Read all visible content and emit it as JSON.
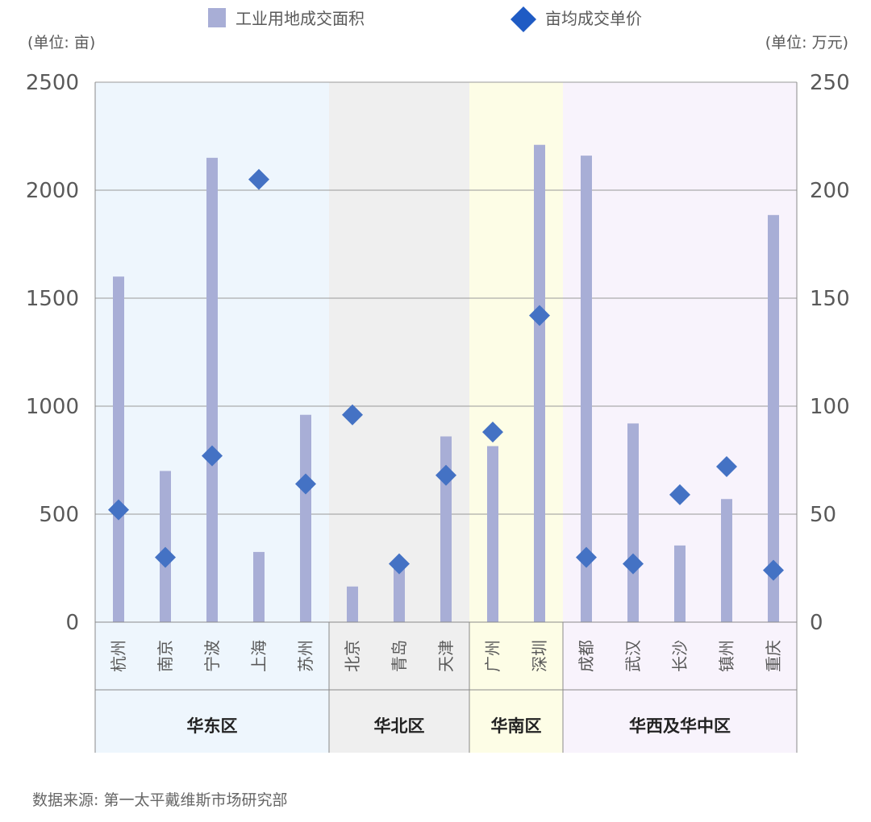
{
  "chart_data": {
    "type": "bar",
    "legend": {
      "bar_label": "工业用地成交面积",
      "marker_label": "亩均成交单价",
      "placement": "top"
    },
    "left_axis": {
      "unit": "(单位: 亩)",
      "ylim": [
        0,
        2500
      ],
      "ticks": [
        "0",
        "500",
        "1000",
        "1500",
        "2000",
        "2500"
      ]
    },
    "right_axis": {
      "unit": "(单位: 万元)",
      "ylim": [
        0,
        250
      ],
      "ticks": [
        "0",
        "50",
        "100",
        "150",
        "200",
        "250"
      ]
    },
    "categories": [
      "杭州",
      "南京",
      "宁波",
      "上海",
      "苏州",
      "北京",
      "青岛",
      "天津",
      "广州",
      "深圳",
      "成都",
      "武汉",
      "长沙",
      "镇州",
      "重庆"
    ],
    "series": [
      {
        "name": "工业用地成交面积",
        "axis": "left",
        "kind": "bar",
        "values": [
          1600,
          700,
          2150,
          325,
          960,
          165,
          290,
          860,
          815,
          2210,
          2160,
          920,
          355,
          570,
          1885
        ]
      },
      {
        "name": "亩均成交单价",
        "axis": "right",
        "kind": "diamond",
        "values": [
          52,
          30,
          77,
          205,
          64,
          96,
          27,
          68,
          88,
          142,
          30,
          27,
          59,
          72,
          24
        ]
      }
    ],
    "regions": [
      {
        "name": "华东区",
        "start": 0,
        "end": 4,
        "color": "#eef6fd"
      },
      {
        "name": "华北区",
        "start": 5,
        "end": 7,
        "color": "#efefef"
      },
      {
        "name": "华南区",
        "start": 8,
        "end": 9,
        "color": "#fdfde6"
      },
      {
        "name": "华西及华中区",
        "start": 10,
        "end": 14,
        "color": "#f8f3fc"
      }
    ],
    "colors": {
      "bar": "#a8aed6",
      "marker": "#4472c4",
      "grid": "#999999"
    },
    "grid": true,
    "source": "数据来源: 第一太平戴维斯市场研究部"
  }
}
